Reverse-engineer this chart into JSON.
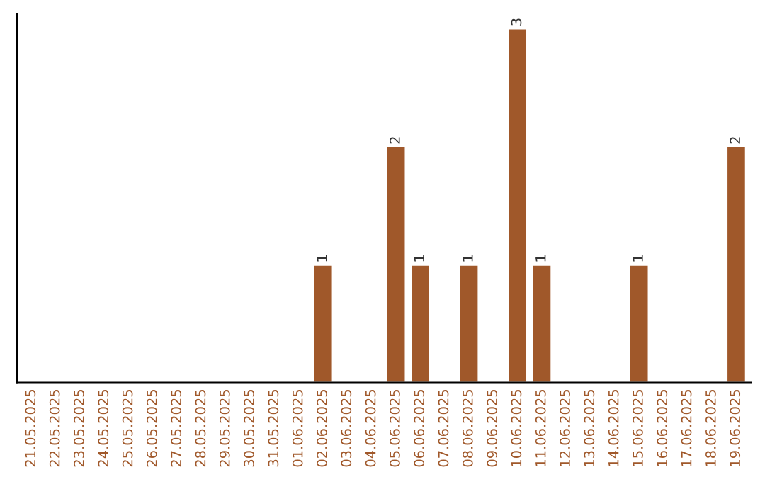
{
  "chart_data": {
    "type": "bar",
    "categories": [
      "21.05.2025",
      "22.05.2025",
      "23.05.2025",
      "24.05.2025",
      "25.05.2025",
      "26.05.2025",
      "27.05.2025",
      "28.05.2025",
      "29.05.2025",
      "30.05.2025",
      "31.05.2025",
      "01.06.2025",
      "02.06.2025",
      "03.06.2025",
      "04.06.2025",
      "05.06.2025",
      "06.06.2025",
      "07.06.2025",
      "08.06.2025",
      "09.06.2025",
      "10.06.2025",
      "11.06.2025",
      "12.06.2025",
      "13.06.2025",
      "14.06.2025",
      "15.06.2025",
      "16.06.2025",
      "17.06.2025",
      "18.06.2025",
      "19.06.2025"
    ],
    "values": [
      null,
      null,
      null,
      null,
      null,
      null,
      null,
      null,
      null,
      null,
      null,
      null,
      1,
      null,
      null,
      2,
      1,
      null,
      1,
      null,
      3,
      1,
      null,
      null,
      null,
      1,
      null,
      null,
      null,
      2
    ],
    "value_labels": [
      null,
      null,
      null,
      null,
      null,
      null,
      null,
      null,
      null,
      null,
      null,
      null,
      "1",
      null,
      null,
      "2",
      "1",
      null,
      "1",
      null,
      "3",
      "1",
      null,
      null,
      null,
      "1",
      null,
      null,
      null,
      "2"
    ],
    "color": "#a0582a",
    "tick_labels": "x",
    "grid": false,
    "legend": false
  }
}
